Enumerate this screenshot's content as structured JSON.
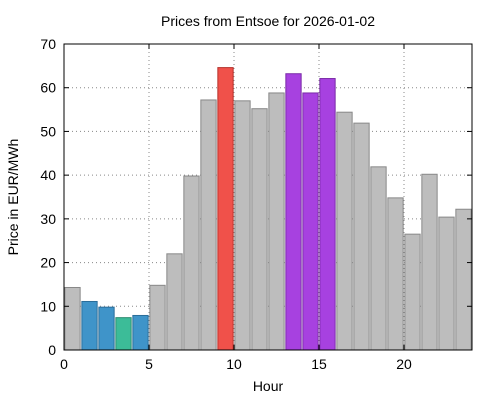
{
  "chart_data": {
    "type": "bar",
    "title": "Prices from Entsoe for 2026-01-02",
    "xlabel": "Hour",
    "ylabel": "Price in EUR/MWh",
    "xlim": [
      0,
      24
    ],
    "ylim": [
      0,
      70
    ],
    "x_ticks": [
      0,
      5,
      10,
      15,
      20
    ],
    "y_ticks": [
      0,
      10,
      20,
      30,
      40,
      50,
      60,
      70
    ],
    "grid": true,
    "x": [
      0,
      1,
      2,
      3,
      4,
      5,
      6,
      7,
      8,
      9,
      10,
      11,
      12,
      13,
      14,
      15,
      16,
      17,
      18,
      19,
      20,
      21,
      22,
      23
    ],
    "values": [
      14.3,
      11.1,
      9.8,
      7.4,
      7.9,
      14.8,
      22.0,
      39.8,
      57.2,
      64.6,
      57.0,
      55.2,
      58.8,
      63.2,
      58.8,
      62.1,
      54.4,
      51.9,
      41.9,
      34.8,
      26.5,
      40.2,
      30.4,
      32.2
    ],
    "bar_colors": [
      "#bdbdbd",
      "#3f94c9",
      "#3f94c9",
      "#3cbc98",
      "#3f94c9",
      "#bdbdbd",
      "#bdbdbd",
      "#bdbdbd",
      "#bdbdbd",
      "#f0514a",
      "#bdbdbd",
      "#bdbdbd",
      "#bdbdbd",
      "#a741e0",
      "#a741e0",
      "#a741e0",
      "#bdbdbd",
      "#bdbdbd",
      "#bdbdbd",
      "#bdbdbd",
      "#bdbdbd",
      "#bdbdbd",
      "#bdbdbd",
      "#bdbdbd"
    ],
    "bar_edge_colors": [
      "#888888",
      "#2a6d99",
      "#2a6d99",
      "#2a8a6f",
      "#2a6d99",
      "#888888",
      "#888888",
      "#888888",
      "#888888",
      "#b5302a",
      "#888888",
      "#888888",
      "#888888",
      "#7a2aa8",
      "#7a2aa8",
      "#7a2aa8",
      "#888888",
      "#888888",
      "#888888",
      "#888888",
      "#888888",
      "#888888",
      "#888888",
      "#888888"
    ]
  }
}
